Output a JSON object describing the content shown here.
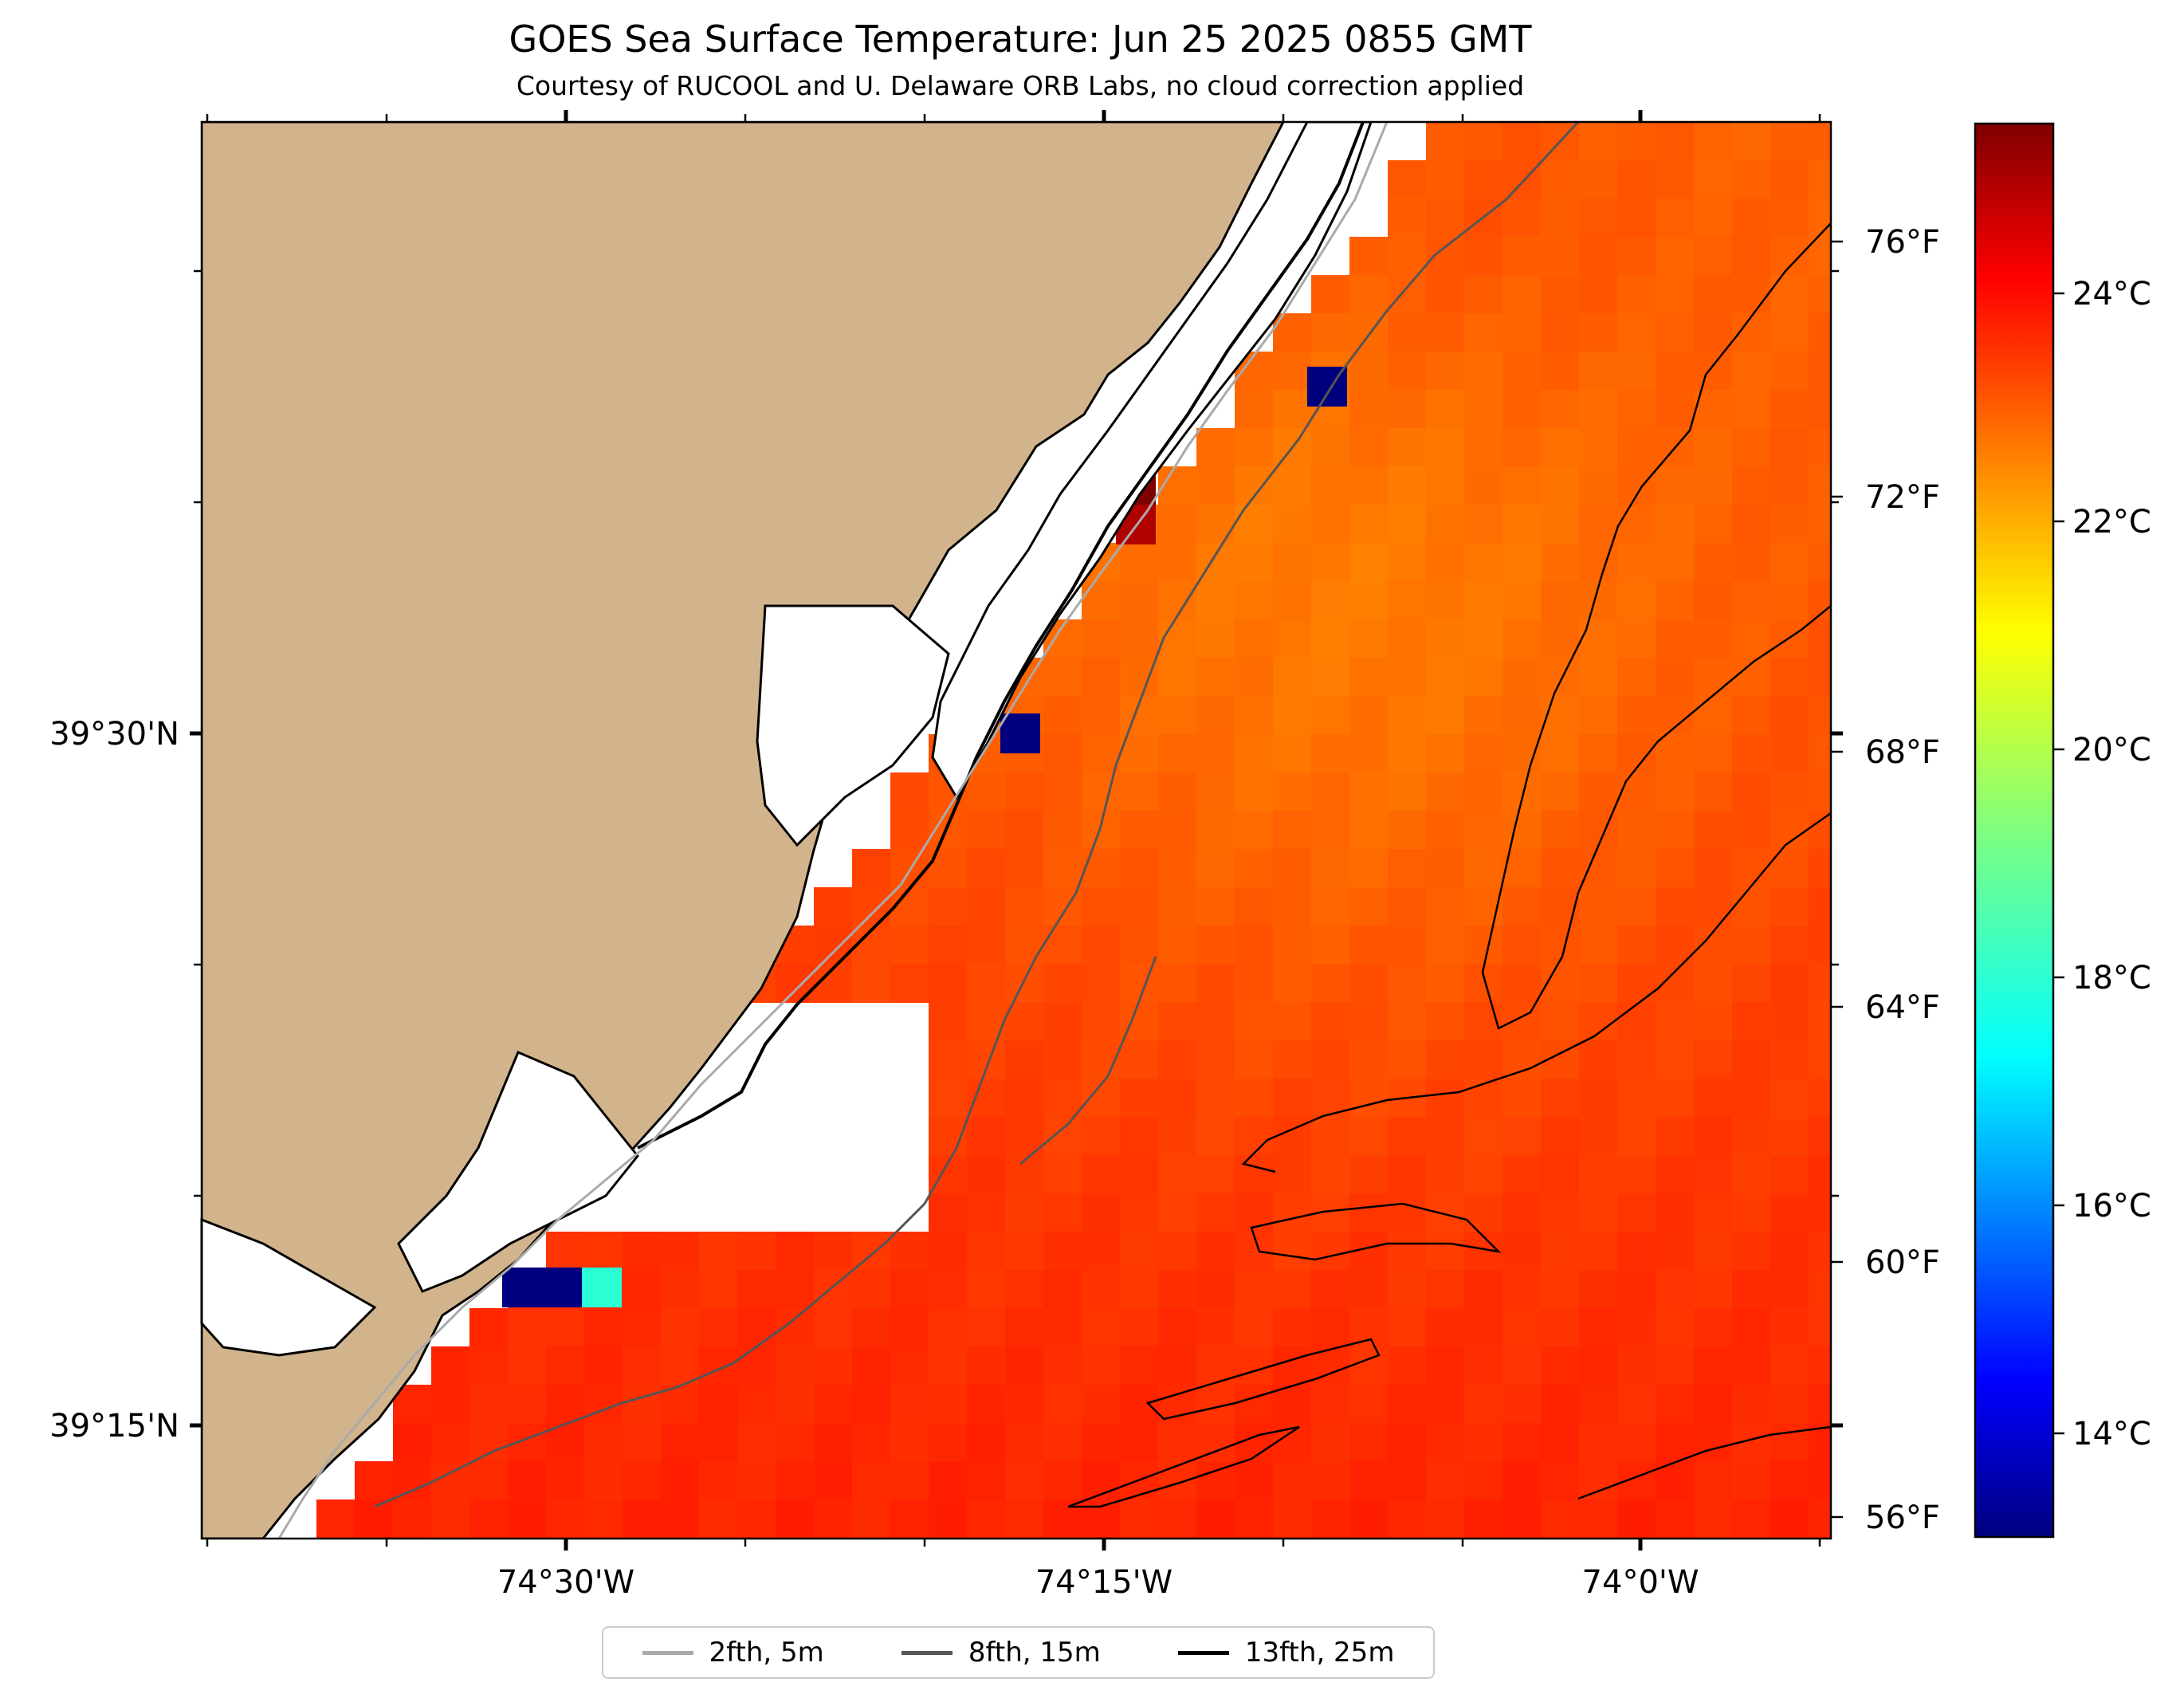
{
  "title": "GOES Sea Surface Temperature: Jun 25 2025 0855 GMT",
  "subtitle": "Courtesy of RUCOOL and U. Delaware ORB Labs, no cloud correction applied",
  "axes": {
    "lon_ticks": [
      "74°30'W",
      "74°15'W",
      "74°0'W"
    ],
    "lat_ticks": [
      "39°30'N",
      "39°15'N"
    ]
  },
  "colorbar": {
    "celsius_ticks": [
      "24°C",
      "22°C",
      "20°C",
      "18°C",
      "16°C",
      "14°C"
    ],
    "fahrenheit_ticks": [
      "76°F",
      "72°F",
      "68°F",
      "64°F",
      "60°F",
      "56°F"
    ],
    "range_c": [
      12.8,
      25.2
    ],
    "colormap": "jet"
  },
  "legend": {
    "items": [
      {
        "label": "2fth, 5m",
        "color": "#aaaaaa"
      },
      {
        "label": "8fth, 15m",
        "color": "#555555"
      },
      {
        "label": "13fth, 25m",
        "color": "#000000"
      }
    ]
  },
  "colors": {
    "land": "#d2b48c",
    "ocean_no_data": "#ffffff",
    "warm": "#ff4a00",
    "cool": "#ffc000"
  }
}
